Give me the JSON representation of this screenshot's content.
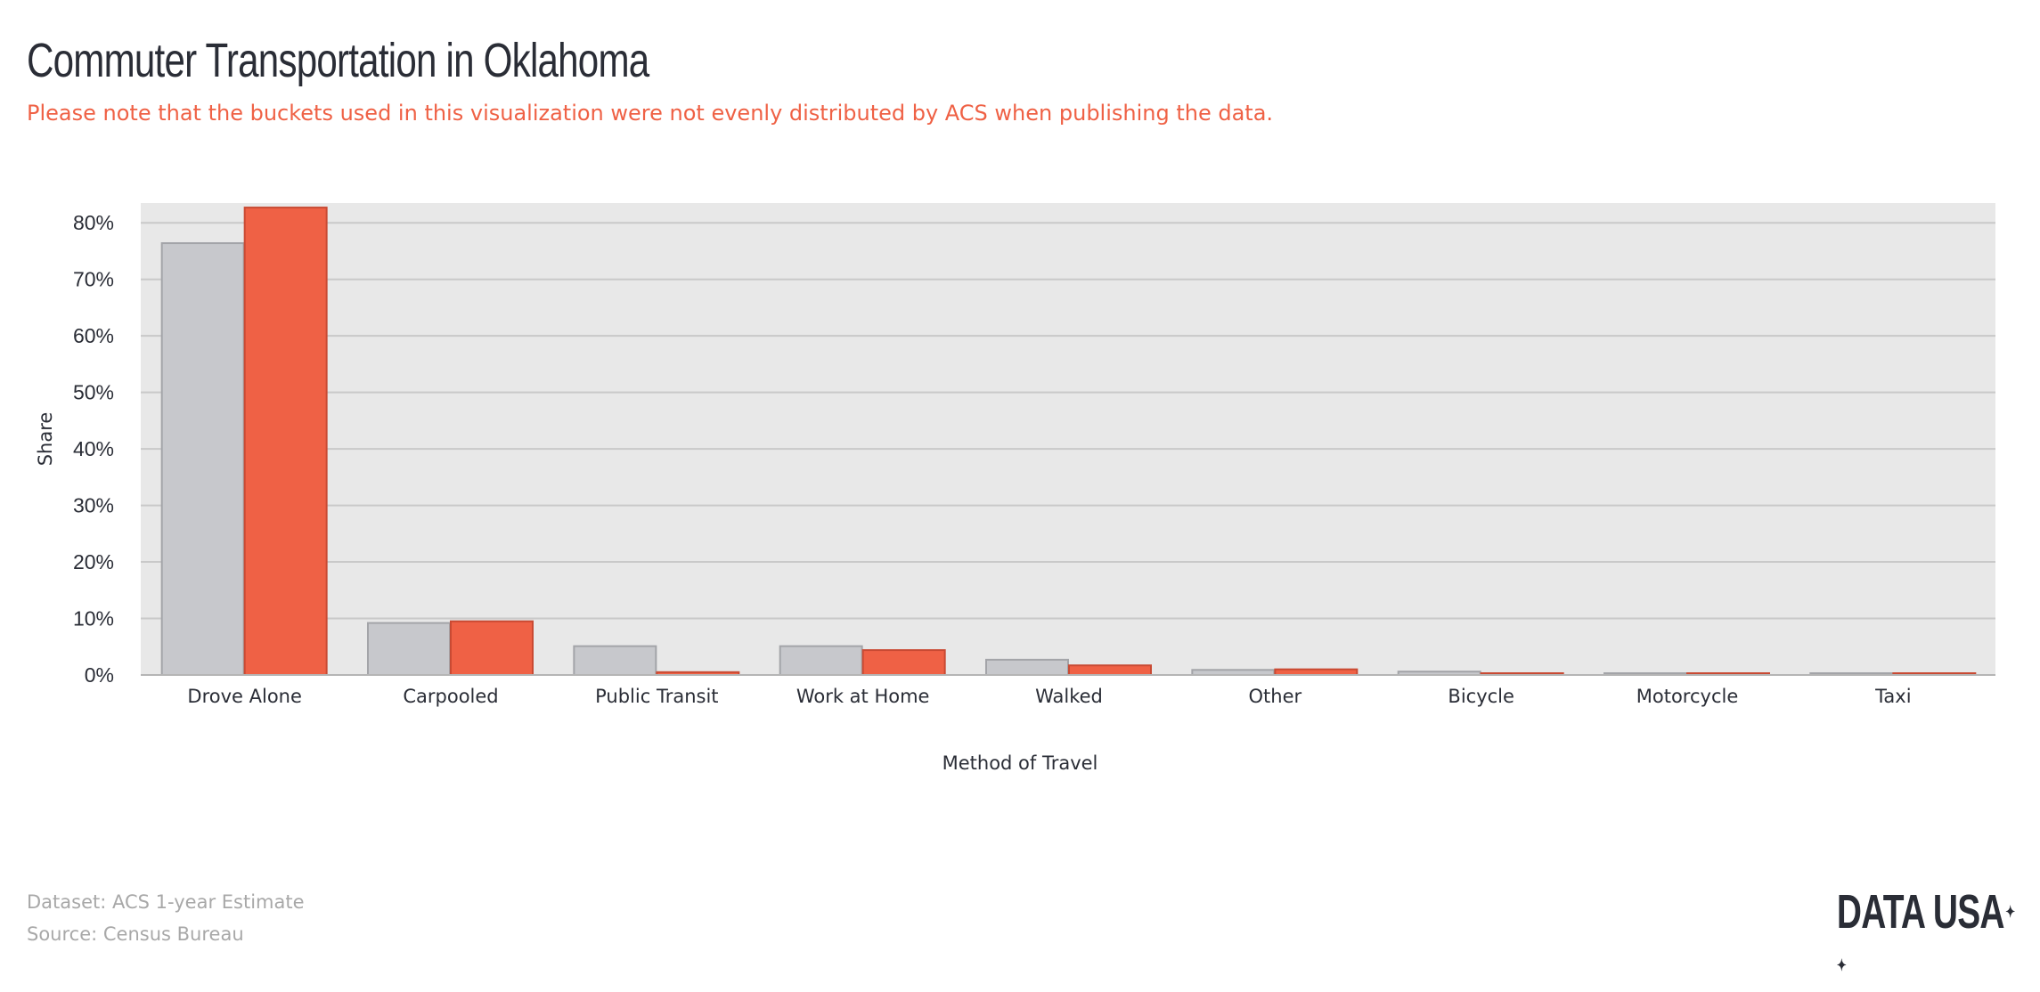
{
  "header": {
    "title": "Commuter Transportation in Oklahoma",
    "subtitle": "Please note that the buckets used in this visualization were not evenly distributed by ACS when publishing the data."
  },
  "chart_data": {
    "type": "bar",
    "xlabel": "Method of Travel",
    "ylabel": "Share",
    "ylim": [
      0,
      0.835
    ],
    "yticks": [
      0,
      0.1,
      0.2,
      0.3,
      0.4,
      0.5,
      0.6,
      0.7,
      0.8
    ],
    "ytick_labels": [
      "0%",
      "10%",
      "20%",
      "30%",
      "40%",
      "50%",
      "60%",
      "70%",
      "80%"
    ],
    "grid": true,
    "categories": [
      "Drove Alone",
      "Carpooled",
      "Public Transit",
      "Work at Home",
      "Walked",
      "Other",
      "Bicycle",
      "Motorcycle",
      "Taxi"
    ],
    "series": [
      {
        "color": "#c7c8cc",
        "stroke": "#a3a4a8",
        "values": [
          0.764,
          0.092,
          0.051,
          0.051,
          0.027,
          0.009,
          0.006,
          0.002,
          0.002
        ]
      },
      {
        "color": "#ef6145",
        "stroke": "#c94a33",
        "values": [
          0.827,
          0.095,
          0.005,
          0.044,
          0.017,
          0.01,
          0.003,
          0.003,
          0.001
        ]
      }
    ]
  },
  "footer": {
    "dataset": "Dataset: ACS 1-year Estimate",
    "source": "Source: Census Bureau"
  },
  "logo": {
    "text": "DATA USA",
    "stars": "★\n★"
  }
}
